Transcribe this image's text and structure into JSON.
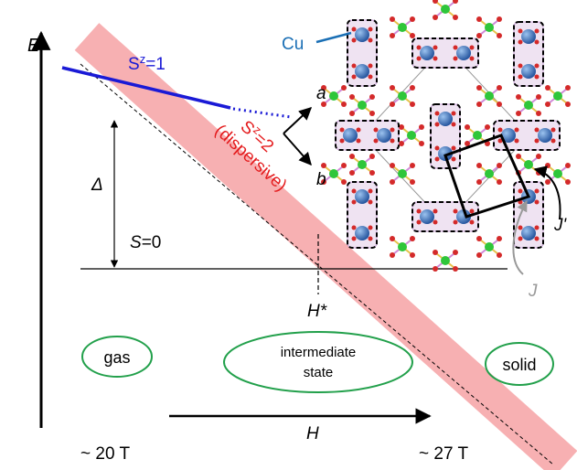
{
  "axis_label_energy": "E",
  "levels": {
    "sz1": {
      "base": "S",
      "sup": "z",
      "rest": "=1"
    },
    "sz2": {
      "base": "S",
      "sup": "z",
      "rest": "=2"
    },
    "sz2_note": "(dispersive)",
    "s0": {
      "base": "S",
      "rest": "=0"
    }
  },
  "gap_label": "Δ",
  "critical_field": "H*",
  "phases": {
    "gas": "gas",
    "intermediate": {
      "line1": "intermediate",
      "line2": "state"
    },
    "solid": "solid"
  },
  "field_axis": {
    "label": "H",
    "start": "~ 20 T",
    "end": "~ 27 T"
  },
  "inset": {
    "cu": "Cu",
    "axis_a": "a",
    "axis_b": "b",
    "j_prime": "J'",
    "j": "J"
  }
}
